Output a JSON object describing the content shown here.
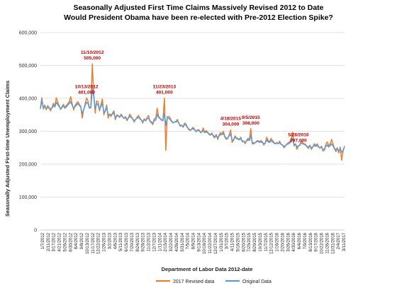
{
  "chart_data": {
    "type": "line",
    "title_line1": "Seasonally Adjusted First Time Claims Massively Revised 2012 to Date",
    "title_line2": "Would President Obama have been re-elected with Pre-2012 Election Spike?",
    "xlabel": "Department of Labor Data 2012-date",
    "ylabel": "Seasonally Adjusted First-time Unemployment Claims",
    "ylim": [
      0,
      600000
    ],
    "yticks": [
      "0",
      "100,000",
      "200,000",
      "300,000",
      "400,000",
      "500,000",
      "600,000"
    ],
    "grid": true,
    "legend_position": "bottom",
    "x_tick_labels": [
      "1/7/2012",
      "2/11/2012",
      "3/17/2012",
      "4/21/2012",
      "5/26/2012",
      "6/30/2012",
      "8/4/2012",
      "9/8/2012",
      "10/13/2012",
      "11/17/2012",
      "12/22/2012",
      "1/26/2013",
      "3/2/2013",
      "4/6/2013",
      "5/11/2013",
      "6/15/2013",
      "7/20/2013",
      "8/24/2013",
      "9/28/2013",
      "11/2/2013",
      "12/7/2013",
      "1/11/2014",
      "2/15/2014",
      "3/22/2014",
      "4/26/2014",
      "5/31/2014",
      "7/5/2014",
      "8/9/2014",
      "9/13/2014",
      "10/18/2014",
      "11/22/2014",
      "12/27/2014",
      "1/31/2015",
      "3/7/2015",
      "4/11/2015",
      "5/16/2015",
      "6/20/2015",
      "7/25/2015",
      "8/29/2015",
      "10/3/2015",
      "11/7/2015",
      "12/12/2015",
      "1/16/2016",
      "2/20/2016",
      "3/26/2016",
      "4/30/2016",
      "6/4/2016",
      "7/9/2016",
      "8/13/2016",
      "9/17/2016",
      "10/22/2016",
      "11/26/2016",
      "12/31/2016",
      "2/4/2017",
      "3/11/2017"
    ],
    "series": [
      {
        "name": "2017 Revised data",
        "color": "#ed7d31",
        "values": [
          371000,
          402000,
          367000,
          380000,
          365000,
          378000,
          372000,
          362000,
          372000,
          385000,
          376000,
          402000,
          388000,
          378000,
          366000,
          375000,
          382000,
          372000,
          378000,
          384000,
          390000,
          405000,
          385000,
          365000,
          378000,
          385000,
          390000,
          382000,
          376000,
          340000,
          365000,
          382000,
          401000,
          392000,
          370000,
          375000,
          505000,
          412000,
          355000,
          392000,
          390000,
          362000,
          382000,
          398000,
          350000,
          362000,
          380000,
          340000,
          352000,
          345000,
          355000,
          362000,
          335000,
          350000,
          348000,
          342000,
          352000,
          345000,
          338000,
          345000,
          332000,
          340000,
          352000,
          345000,
          338000,
          328000,
          336000,
          342000,
          348000,
          340000,
          335000,
          325000,
          338000,
          332000,
          342000,
          348000,
          330000,
          326000,
          320000,
          338000,
          338000,
          370000,
          345000,
          340000,
          335000,
          332000,
          401000,
          242000,
          345000,
          345000,
          340000,
          332000,
          325000,
          328000,
          330000,
          336000,
          325000,
          315000,
          318000,
          312000,
          325000,
          322000,
          310000,
          305000,
          302000,
          308000,
          312000,
          306000,
          298000,
          304000,
          305000,
          296000,
          298000,
          310000,
          296000,
          302000,
          298000,
          290000,
          288000,
          295000,
          284000,
          280000,
          290000,
          275000,
          288000,
          296000,
          292000,
          300000,
          282000,
          275000,
          278000,
          290000,
          304000,
          266000,
          272000,
          286000,
          280000,
          278000,
          275000,
          282000,
          268000,
          270000,
          262000,
          272000,
          278000,
          276000,
          308000,
          262000,
          262000,
          265000,
          270000,
          272000,
          268000,
          272000,
          268000,
          258000,
          265000,
          282000,
          272000,
          268000,
          278000,
          272000,
          266000,
          262000,
          266000,
          262000,
          270000,
          260000,
          258000,
          250000,
          255000,
          262000,
          265000,
          268000,
          276000,
          297000,
          255000,
          262000,
          245000,
          255000,
          258000,
          270000,
          265000,
          262000,
          260000,
          252000,
          248000,
          258000,
          245000,
          252000,
          262000,
          256000,
          262000,
          254000,
          248000,
          255000,
          240000,
          242000,
          260000,
          268000,
          256000,
          262000,
          275000,
          262000,
          248000,
          238000,
          250000,
          234000,
          252000,
          212000,
          240000,
          255000
        ]
      },
      {
        "name": "Original Data",
        "color": "#5b9bd5",
        "values": [
          368000,
          395000,
          372000,
          375000,
          368000,
          372000,
          370000,
          368000,
          370000,
          378000,
          374000,
          388000,
          382000,
          375000,
          368000,
          372000,
          378000,
          370000,
          374000,
          380000,
          384000,
          390000,
          380000,
          370000,
          374000,
          380000,
          384000,
          378000,
          374000,
          352000,
          366000,
          378000,
          388000,
          385000,
          370000,
          372000,
          430000,
          408000,
          368000,
          385000,
          380000,
          366000,
          375000,
          385000,
          358000,
          362000,
          372000,
          348000,
          352000,
          350000,
          352000,
          356000,
          340000,
          348000,
          346000,
          344000,
          348000,
          344000,
          340000,
          342000,
          336000,
          340000,
          346000,
          342000,
          338000,
          332000,
          336000,
          340000,
          342000,
          338000,
          334000,
          330000,
          335000,
          332000,
          338000,
          340000,
          332000,
          328000,
          325000,
          332000,
          334000,
          352000,
          342000,
          338000,
          334000,
          332000,
          355000,
          318000,
          338000,
          340000,
          336000,
          330000,
          326000,
          328000,
          328000,
          332000,
          324000,
          318000,
          318000,
          314000,
          320000,
          318000,
          312000,
          306000,
          304000,
          306000,
          308000,
          304000,
          300000,
          302000,
          302000,
          298000,
          298000,
          302000,
          296000,
          298000,
          296000,
          292000,
          290000,
          292000,
          286000,
          284000,
          288000,
          280000,
          286000,
          290000,
          290000,
          294000,
          284000,
          278000,
          280000,
          286000,
          292000,
          272000,
          274000,
          282000,
          278000,
          276000,
          274000,
          278000,
          270000,
          270000,
          266000,
          270000,
          274000,
          272000,
          288000,
          266000,
          264000,
          266000,
          268000,
          270000,
          266000,
          268000,
          266000,
          262000,
          264000,
          274000,
          268000,
          266000,
          272000,
          268000,
          264000,
          262000,
          264000,
          262000,
          266000,
          260000,
          258000,
          254000,
          256000,
          260000,
          262000,
          264000,
          270000,
          278000,
          258000,
          260000,
          252000,
          256000,
          258000,
          264000,
          262000,
          260000,
          258000,
          254000,
          252000,
          256000,
          250000,
          252000,
          258000,
          254000,
          258000,
          252000,
          250000,
          252000,
          244000,
          246000,
          254000,
          258000,
          252000,
          256000,
          262000,
          256000,
          248000,
          244000,
          248000,
          240000,
          246000,
          236000,
          242000,
          254000
        ]
      }
    ],
    "annotations": [
      {
        "text": "11/10/2012",
        "value": "505,000",
        "index": 36
      },
      {
        "text": "10/13/2012",
        "value": "401,000",
        "index": 32
      },
      {
        "text": "11/23/2013",
        "value": "401,000",
        "index": 86
      },
      {
        "text": "4/18/2015",
        "value": "304,000",
        "index": 132
      },
      {
        "text": "9/5/2015",
        "value": "308,000",
        "index": 146
      },
      {
        "text": "5/28/2016",
        "value": "297,000",
        "index": 179
      }
    ]
  }
}
